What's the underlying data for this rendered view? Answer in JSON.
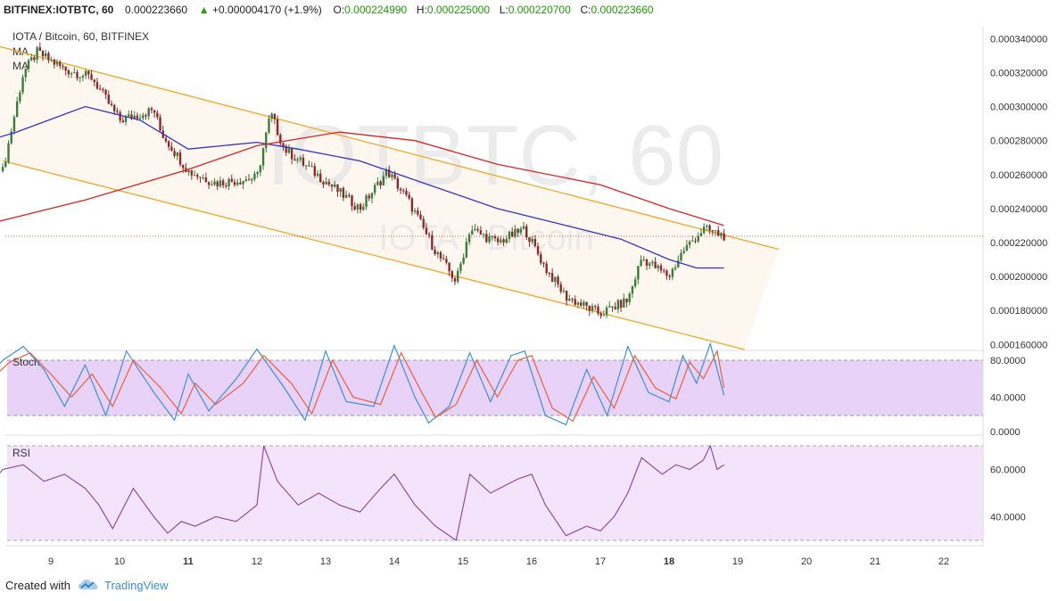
{
  "header": {
    "symbol": "BITFINEX:IOTBTC, 60",
    "last": "0.000223660",
    "change": "+0.000004170 (+1.9%)",
    "o_label": "O:",
    "o_value": "0.000224990",
    "h_label": "H:",
    "h_value": "0.000225000",
    "l_label": "L:",
    "l_value": "0.000220700",
    "c_label": "C:",
    "c_value": "0.000223660"
  },
  "legend": {
    "pair": "IOTA / Bitcoin, 60, BITFINEX",
    "ma1": "MA",
    "ma2": "MA"
  },
  "watermark": {
    "main": "IOTBTC, 60",
    "sub": "IOTA / Bitcoin"
  },
  "footer": {
    "created": "Created with",
    "brand": "TradingView"
  },
  "colors": {
    "up_candle": "#3a7d3a",
    "down_candle": "#8a2a2a",
    "ma_fast": "#3333cc",
    "ma_slow": "#dd2222",
    "channel": "#f5a623",
    "stoch_k": "#3d8fd6",
    "stoch_d": "#e8603c",
    "rsi": "#8a3fa8",
    "stoch_band": "#e9d2f7",
    "rsi_band": "#f3e4fb"
  },
  "chart_data": [
    {
      "type": "candlestick",
      "title": "IOTA / Bitcoin, 60, BITFINEX",
      "x_tick_labels": [
        "9",
        "10",
        "11",
        "12",
        "13",
        "14",
        "15",
        "16",
        "17",
        "18",
        "19",
        "20",
        "21",
        "22"
      ],
      "y_tick_labels": [
        "0.000340000",
        "0.000320000",
        "0.000300000",
        "0.000280000",
        "0.000260000",
        "0.000240000",
        "0.000220000",
        "0.000200000",
        "0.000180000",
        "0.000160000"
      ],
      "ylim": [
        0.000157,
        0.000347
      ],
      "current_price": 0.00022366,
      "close_path": [
        {
          "x": 8.3,
          "y": 0.000262
        },
        {
          "x": 8.6,
          "y": 0.00032
        },
        {
          "x": 8.8,
          "y": 0.000332
        },
        {
          "x": 9.2,
          "y": 0.000322
        },
        {
          "x": 9.6,
          "y": 0.000317
        },
        {
          "x": 10.0,
          "y": 0.000292
        },
        {
          "x": 10.5,
          "y": 0.000298
        },
        {
          "x": 10.6,
          "y": 0.000285
        },
        {
          "x": 11.0,
          "y": 0.000262
        },
        {
          "x": 11.4,
          "y": 0.000255
        },
        {
          "x": 12.0,
          "y": 0.000258
        },
        {
          "x": 12.2,
          "y": 0.000296
        },
        {
          "x": 12.4,
          "y": 0.000275
        },
        {
          "x": 13.0,
          "y": 0.000256
        },
        {
          "x": 13.5,
          "y": 0.00024
        },
        {
          "x": 13.9,
          "y": 0.000262
        },
        {
          "x": 14.2,
          "y": 0.000245
        },
        {
          "x": 14.6,
          "y": 0.000215
        },
        {
          "x": 14.9,
          "y": 0.000197
        },
        {
          "x": 15.1,
          "y": 0.000228
        },
        {
          "x": 15.5,
          "y": 0.00022
        },
        {
          "x": 15.9,
          "y": 0.000228
        },
        {
          "x": 16.2,
          "y": 0.000205
        },
        {
          "x": 16.5,
          "y": 0.000188
        },
        {
          "x": 17.0,
          "y": 0.000178
        },
        {
          "x": 17.4,
          "y": 0.000186
        },
        {
          "x": 17.6,
          "y": 0.000211
        },
        {
          "x": 18.0,
          "y": 0.0002
        },
        {
          "x": 18.2,
          "y": 0.000215
        },
        {
          "x": 18.5,
          "y": 0.000228
        },
        {
          "x": 18.8,
          "y": 0.000224
        }
      ],
      "ma_fast_path": [
        {
          "x": 8.0,
          "y": 0.000279
        },
        {
          "x": 8.5,
          "y": 0.000285
        },
        {
          "x": 9.5,
          "y": 0.0003
        },
        {
          "x": 10.3,
          "y": 0.000292
        },
        {
          "x": 11.0,
          "y": 0.000275
        },
        {
          "x": 12.0,
          "y": 0.000279
        },
        {
          "x": 12.6,
          "y": 0.000275
        },
        {
          "x": 13.5,
          "y": 0.000268
        },
        {
          "x": 14.5,
          "y": 0.000254
        },
        {
          "x": 15.5,
          "y": 0.00024
        },
        {
          "x": 16.5,
          "y": 0.00023
        },
        {
          "x": 17.3,
          "y": 0.000222
        },
        {
          "x": 18.0,
          "y": 0.00021
        },
        {
          "x": 18.4,
          "y": 0.000205
        },
        {
          "x": 18.8,
          "y": 0.000205
        }
      ],
      "ma_slow_path": [
        {
          "x": 8.0,
          "y": 0.00023
        },
        {
          "x": 9.5,
          "y": 0.000245
        },
        {
          "x": 11.0,
          "y": 0.000263
        },
        {
          "x": 12.0,
          "y": 0.000277
        },
        {
          "x": 13.2,
          "y": 0.000285
        },
        {
          "x": 14.3,
          "y": 0.00028
        },
        {
          "x": 15.5,
          "y": 0.000266
        },
        {
          "x": 17.0,
          "y": 0.000254
        },
        {
          "x": 18.0,
          "y": 0.00024
        },
        {
          "x": 18.8,
          "y": 0.00023
        }
      ],
      "channel_upper": [
        {
          "x": 8.0,
          "y": 0.000338
        },
        {
          "x": 19.6,
          "y": 0.000216
        }
      ],
      "channel_lower": [
        {
          "x": 8.3,
          "y": 0.000268
        },
        {
          "x": 19.1,
          "y": 0.000157
        }
      ]
    },
    {
      "type": "line",
      "title": "Stoch",
      "y_tick_labels": [
        "80.0000",
        "40.0000",
        "0.0000"
      ],
      "ylim": [
        0,
        100
      ],
      "band": [
        20,
        80
      ],
      "k_path": [
        {
          "x": 8.0,
          "y": 55
        },
        {
          "x": 8.3,
          "y": 80
        },
        {
          "x": 8.6,
          "y": 95
        },
        {
          "x": 8.9,
          "y": 70
        },
        {
          "x": 9.2,
          "y": 30
        },
        {
          "x": 9.5,
          "y": 75
        },
        {
          "x": 9.8,
          "y": 20
        },
        {
          "x": 10.1,
          "y": 90
        },
        {
          "x": 10.5,
          "y": 45
        },
        {
          "x": 10.8,
          "y": 15
        },
        {
          "x": 11.0,
          "y": 65
        },
        {
          "x": 11.3,
          "y": 25
        },
        {
          "x": 11.7,
          "y": 60
        },
        {
          "x": 12.0,
          "y": 92
        },
        {
          "x": 12.4,
          "y": 50
        },
        {
          "x": 12.7,
          "y": 15
        },
        {
          "x": 13.0,
          "y": 90
        },
        {
          "x": 13.3,
          "y": 35
        },
        {
          "x": 13.7,
          "y": 30
        },
        {
          "x": 14.0,
          "y": 96
        },
        {
          "x": 14.3,
          "y": 40
        },
        {
          "x": 14.5,
          "y": 12
        },
        {
          "x": 14.8,
          "y": 30
        },
        {
          "x": 15.1,
          "y": 88
        },
        {
          "x": 15.4,
          "y": 35
        },
        {
          "x": 15.7,
          "y": 85
        },
        {
          "x": 15.9,
          "y": 90
        },
        {
          "x": 16.2,
          "y": 20
        },
        {
          "x": 16.5,
          "y": 10
        },
        {
          "x": 16.8,
          "y": 70
        },
        {
          "x": 17.1,
          "y": 20
        },
        {
          "x": 17.4,
          "y": 95
        },
        {
          "x": 17.7,
          "y": 45
        },
        {
          "x": 18.0,
          "y": 35
        },
        {
          "x": 18.2,
          "y": 85
        },
        {
          "x": 18.4,
          "y": 55
        },
        {
          "x": 18.6,
          "y": 98
        },
        {
          "x": 18.8,
          "y": 42
        }
      ],
      "d_path": [
        {
          "x": 8.0,
          "y": 50
        },
        {
          "x": 8.4,
          "y": 78
        },
        {
          "x": 8.7,
          "y": 88
        },
        {
          "x": 9.0,
          "y": 65
        },
        {
          "x": 9.3,
          "y": 40
        },
        {
          "x": 9.6,
          "y": 65
        },
        {
          "x": 9.9,
          "y": 30
        },
        {
          "x": 10.2,
          "y": 80
        },
        {
          "x": 10.6,
          "y": 50
        },
        {
          "x": 10.9,
          "y": 22
        },
        {
          "x": 11.1,
          "y": 55
        },
        {
          "x": 11.4,
          "y": 32
        },
        {
          "x": 11.8,
          "y": 55
        },
        {
          "x": 12.1,
          "y": 85
        },
        {
          "x": 12.5,
          "y": 55
        },
        {
          "x": 12.8,
          "y": 22
        },
        {
          "x": 13.1,
          "y": 80
        },
        {
          "x": 13.4,
          "y": 40
        },
        {
          "x": 13.8,
          "y": 32
        },
        {
          "x": 14.1,
          "y": 88
        },
        {
          "x": 14.4,
          "y": 45
        },
        {
          "x": 14.6,
          "y": 18
        },
        {
          "x": 14.9,
          "y": 32
        },
        {
          "x": 15.2,
          "y": 80
        },
        {
          "x": 15.5,
          "y": 40
        },
        {
          "x": 15.8,
          "y": 80
        },
        {
          "x": 16.0,
          "y": 85
        },
        {
          "x": 16.3,
          "y": 28
        },
        {
          "x": 16.6,
          "y": 14
        },
        {
          "x": 16.9,
          "y": 62
        },
        {
          "x": 17.2,
          "y": 28
        },
        {
          "x": 17.5,
          "y": 85
        },
        {
          "x": 17.8,
          "y": 50
        },
        {
          "x": 18.1,
          "y": 38
        },
        {
          "x": 18.3,
          "y": 78
        },
        {
          "x": 18.5,
          "y": 60
        },
        {
          "x": 18.7,
          "y": 90
        },
        {
          "x": 18.8,
          "y": 50
        }
      ]
    },
    {
      "type": "line",
      "title": "RSI",
      "y_tick_labels": [
        "60.0000",
        "40.0000"
      ],
      "ylim": [
        27,
        73
      ],
      "band": [
        30,
        70
      ],
      "rsi_path": [
        {
          "x": 8.0,
          "y": 50
        },
        {
          "x": 8.3,
          "y": 60
        },
        {
          "x": 8.6,
          "y": 62
        },
        {
          "x": 8.9,
          "y": 55
        },
        {
          "x": 9.2,
          "y": 58
        },
        {
          "x": 9.5,
          "y": 52
        },
        {
          "x": 9.7,
          "y": 45
        },
        {
          "x": 9.9,
          "y": 35
        },
        {
          "x": 10.2,
          "y": 52
        },
        {
          "x": 10.5,
          "y": 40
        },
        {
          "x": 10.7,
          "y": 33
        },
        {
          "x": 10.9,
          "y": 38
        },
        {
          "x": 11.1,
          "y": 36
        },
        {
          "x": 11.4,
          "y": 40
        },
        {
          "x": 11.7,
          "y": 38
        },
        {
          "x": 12.0,
          "y": 45
        },
        {
          "x": 12.1,
          "y": 70
        },
        {
          "x": 12.3,
          "y": 55
        },
        {
          "x": 12.6,
          "y": 45
        },
        {
          "x": 12.9,
          "y": 50
        },
        {
          "x": 13.2,
          "y": 45
        },
        {
          "x": 13.5,
          "y": 42
        },
        {
          "x": 13.8,
          "y": 52
        },
        {
          "x": 14.0,
          "y": 58
        },
        {
          "x": 14.3,
          "y": 45
        },
        {
          "x": 14.6,
          "y": 36
        },
        {
          "x": 14.9,
          "y": 30
        },
        {
          "x": 15.1,
          "y": 58
        },
        {
          "x": 15.4,
          "y": 50
        },
        {
          "x": 15.8,
          "y": 56
        },
        {
          "x": 16.0,
          "y": 58
        },
        {
          "x": 16.2,
          "y": 45
        },
        {
          "x": 16.5,
          "y": 32
        },
        {
          "x": 16.8,
          "y": 36
        },
        {
          "x": 17.0,
          "y": 34
        },
        {
          "x": 17.2,
          "y": 40
        },
        {
          "x": 17.4,
          "y": 50
        },
        {
          "x": 17.6,
          "y": 65
        },
        {
          "x": 17.9,
          "y": 58
        },
        {
          "x": 18.1,
          "y": 62
        },
        {
          "x": 18.3,
          "y": 60
        },
        {
          "x": 18.5,
          "y": 64
        },
        {
          "x": 18.6,
          "y": 70
        },
        {
          "x": 18.7,
          "y": 60
        },
        {
          "x": 18.8,
          "y": 62
        }
      ]
    }
  ]
}
